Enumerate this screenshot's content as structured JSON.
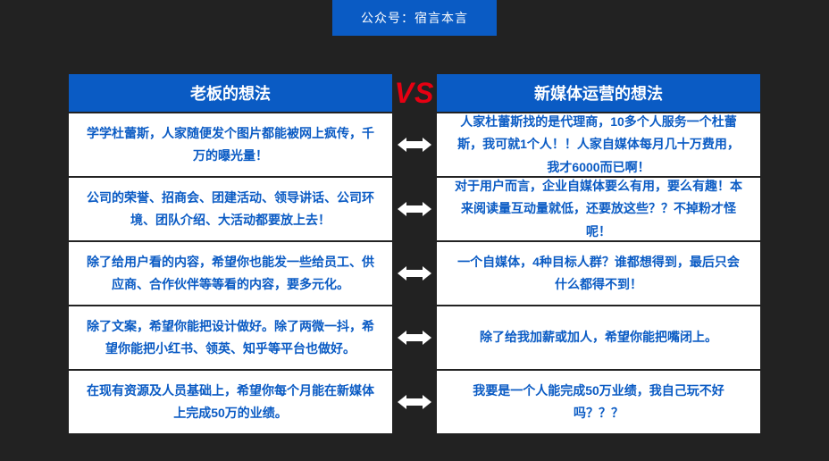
{
  "badge": {
    "text": "公众号：宿言本言",
    "bg": "#0a5bc4"
  },
  "vs": {
    "text": "VS",
    "color": "#e60012"
  },
  "header_bg": "#0a5bc4",
  "text_color": "#0a5bc4",
  "arrow_color": "#ffffff",
  "left_header": "老板的想法",
  "right_header": "新媒体运营的想法",
  "rows": [
    {
      "left": "学学杜蕾斯，人家随便发个图片都能被网上疯传，千万的曝光量！",
      "right": "人家杜蕾斯找的是代理商，10多个人服务一个杜蕾斯，我可就1个人！！人家自媒体每月几十万费用，我才6000而已啊！"
    },
    {
      "left": "公司的荣誉、招商会、团建活动、领导讲话、公司环境、团队介绍、大活动都要放上去！",
      "right": "对于用户而言，企业自媒体要么有用，要么有趣！本来阅读量互动量就低，还要放这些？？不掉粉才怪呢！"
    },
    {
      "left": "除了给用户看的内容，希望你也能发一些给员工、供应商、合作伙伴等等看的内容，要多元化。",
      "right": "一个自媒体，4种目标人群？谁都想得到，最后只会什么都得不到！"
    },
    {
      "left": "除了文案，希望你能把设计做好。除了两微一抖，希望你能把小红书、领英、知乎等平台也做好。",
      "right": "除了给我加薪或加人，希望你能把嘴闭上。"
    },
    {
      "left": "在现有资源及人员基础上，希望你每个月能在新媒体上完成50万的业绩。",
      "right": "我要是一个人能完成50万业绩，我自己玩不好吗？？？"
    }
  ]
}
